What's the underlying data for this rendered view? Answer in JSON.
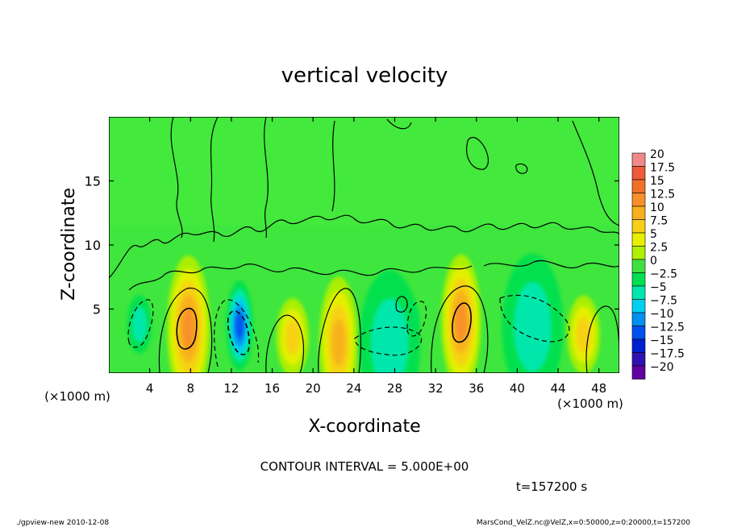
{
  "chart_data": {
    "type": "heatmap",
    "title": "vertical velocity",
    "xlabel": "X-coordinate",
    "ylabel": "Z-coordinate",
    "x_unit_label": "(×1000 m)",
    "y_unit_label": "(×1000 m)",
    "xlim": [
      0,
      50
    ],
    "ylim": [
      0,
      20
    ],
    "x_ticks": [
      4,
      8,
      12,
      16,
      20,
      24,
      28,
      32,
      36,
      40,
      44,
      48
    ],
    "y_ticks": [
      5,
      10,
      15
    ],
    "colorbar": {
      "labels": [
        "20",
        "17.5",
        "15",
        "12.5",
        "10",
        "7.5",
        "5",
        "2.5",
        "0",
        "−2.5",
        "−5",
        "−7.5",
        "−10",
        "−12.5",
        "−15",
        "−17.5",
        "−20"
      ],
      "colors": [
        "#f08a8a",
        "#ee5a3a",
        "#f0702a",
        "#f8902a",
        "#f8b01a",
        "#f8d018",
        "#e8f000",
        "#b0f000",
        "#40e040",
        "#00e050",
        "#00e8b0",
        "#00d0f0",
        "#0090f0",
        "#0050f0",
        "#0020d0",
        "#3010b0",
        "#6000a0"
      ]
    },
    "features": [
      {
        "x": 7.8,
        "z": 3.5,
        "w": 4.2,
        "value": 12.5
      },
      {
        "x": 12.8,
        "z": 3.7,
        "w": 2.6,
        "value": -12.5
      },
      {
        "x": 18.0,
        "z": 2.8,
        "w": 3.2,
        "value": 7.5
      },
      {
        "x": 22.5,
        "z": 2.4,
        "w": 3.8,
        "value": 10
      },
      {
        "x": 34.5,
        "z": 4.0,
        "w": 3.9,
        "value": 12.5
      },
      {
        "x": 46.5,
        "z": 3.0,
        "w": 3.2,
        "value": 7.5
      },
      {
        "x": 3.0,
        "z": 3.8,
        "w": 2.4,
        "value": -5
      },
      {
        "x": 29.5,
        "z": 4.2,
        "w": 1.6,
        "value": -7.5
      },
      {
        "x": 27.5,
        "z": 2.3,
        "w": 6.0,
        "value": -5
      },
      {
        "x": 41.5,
        "z": 3.6,
        "w": 6.0,
        "value": -5
      }
    ],
    "contour_interval": "CONTOUR INTERVAL = 5.000E+00"
  },
  "time_label": "t=157200 s",
  "footer": {
    "left": "./gpview-new 2010-12-08",
    "right": "MarsCond_VelZ.nc@VelZ,x=0:50000,z=0:20000,t=157200"
  }
}
